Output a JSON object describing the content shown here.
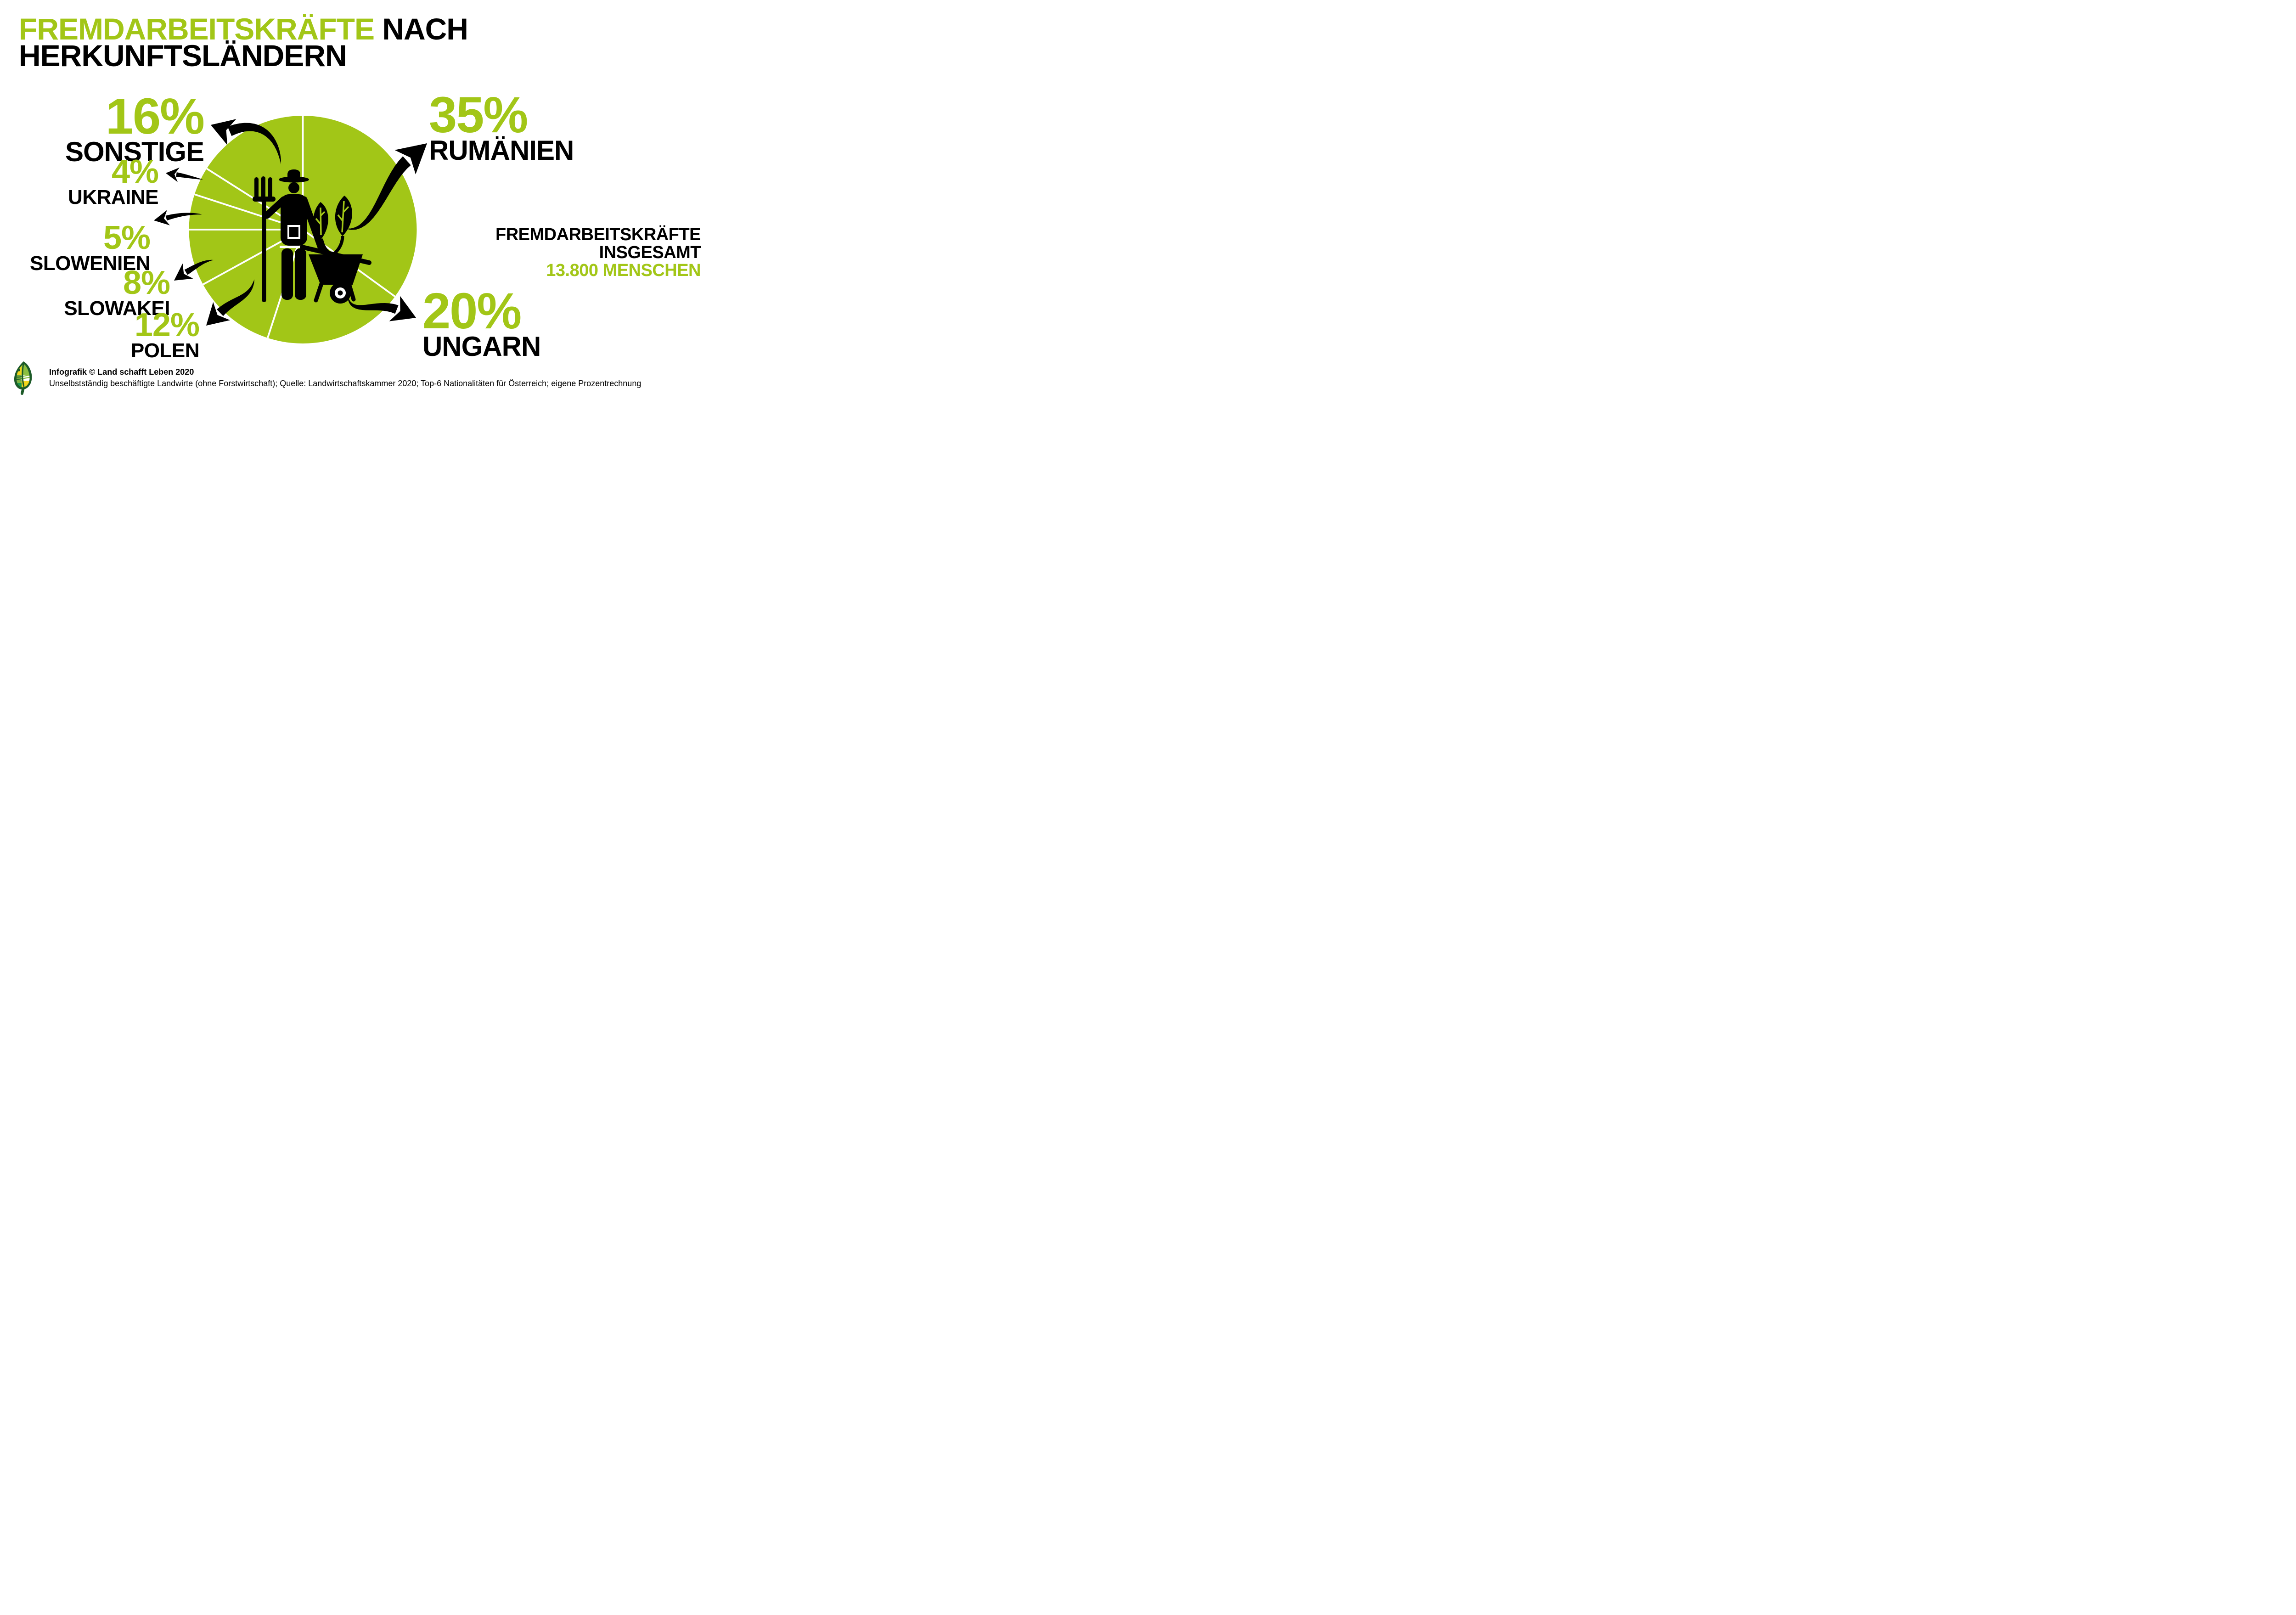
{
  "title": {
    "highlight": "FREMDARBEITSKRÄFTE",
    "rest": "NACH",
    "line2": "HERKUNFTSLÄNDERN"
  },
  "chart_data": {
    "type": "pie",
    "title": "Fremdarbeitskräfte nach Herkunftsländern",
    "unit": "%",
    "start_angle_deg": 0,
    "direction": "clockwise",
    "legend_position": "around",
    "grid": false,
    "segments": [
      {
        "label": "RUMÄNIEN",
        "value": 35,
        "pct_label": "35%"
      },
      {
        "label": "UNGARN",
        "value": 20,
        "pct_label": "20%"
      },
      {
        "label": "POLEN",
        "value": 12,
        "pct_label": "12%"
      },
      {
        "label": "SLOWAKEI",
        "value": 8,
        "pct_label": "8%"
      },
      {
        "label": "SLOWENIEN",
        "value": 5,
        "pct_label": "5%"
      },
      {
        "label": "UKRAINE",
        "value": 4,
        "pct_label": "4%"
      },
      {
        "label": "SONSTIGE",
        "value": 16,
        "pct_label": "16%"
      }
    ],
    "total": {
      "value": 13800,
      "label": "13.800 MENSCHEN"
    }
  },
  "summary": {
    "line1": "FREMDARBEITSKRÄFTE",
    "line2": "INSGESAMT",
    "line3": "13.800 MENSCHEN"
  },
  "footer": {
    "credit": "Infografik © Land schafft Leben 2020",
    "source": "Unselbstständig beschäftigte Landwirte (ohne Forstwirtschaft); Quelle: Landwirtschaftskammer 2020; Top-6 Nationalitäten für Österreich; eigene Prozentrechnung"
  },
  "icons": {
    "center": "farmer-with-pitchfork-and-wheelbarrow-icon",
    "logo": "land-schafft-leben-leaf-logo"
  },
  "colors": {
    "green": "#a2c617",
    "black": "#000000",
    "background": "#ffffff",
    "separator": "#ffffff",
    "logo_dark_green": "#1c5a28",
    "logo_light_green": "#7cb342",
    "logo_bright_green": "#189a4a",
    "logo_yellow": "#f2d41a"
  }
}
